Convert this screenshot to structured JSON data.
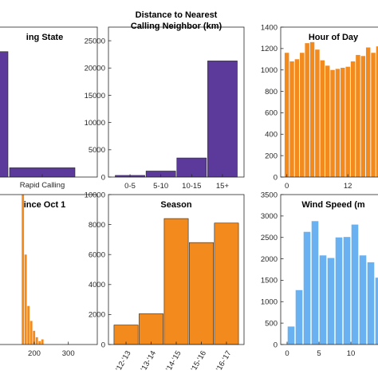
{
  "chart_data": [
    {
      "type": "bar",
      "title": "ing State",
      "categories": [
        "",
        "Rapid Calling"
      ],
      "x_tick_labels": [
        "Rapid Calling"
      ],
      "values": [
        23000,
        1700
      ],
      "ylim": [
        0,
        27500
      ],
      "color": "#5b3a9b"
    },
    {
      "type": "bar",
      "title": "Distance to Nearest\nCalling Neighbor (km)",
      "title_lines": [
        "Distance to Nearest",
        "Calling Neighbor (km)"
      ],
      "categories": [
        "0-5",
        "5-10",
        "10-15",
        "15+"
      ],
      "values": [
        300,
        1100,
        3500,
        21300
      ],
      "y_ticks": [
        "0",
        "5000",
        "10000",
        "15000",
        "20000",
        "25000"
      ],
      "ylim": [
        0,
        27500
      ],
      "color": "#5b3a9b"
    },
    {
      "type": "bar",
      "title": "Hour of Day",
      "x_ticks": [
        "0",
        "12"
      ],
      "y_ticks": [
        "0",
        "200",
        "400",
        "600",
        "800",
        "1000",
        "1200",
        "1400"
      ],
      "values": [
        1160,
        1080,
        1100,
        1160,
        1250,
        1260,
        1190,
        1090,
        1040,
        1000,
        1010,
        1020,
        1030,
        1080,
        1140,
        1130,
        1210,
        1160,
        1220
      ],
      "ylim": [
        0,
        1400
      ],
      "xlim": [
        -1.2,
        19.5
      ],
      "color": "#f28a1e"
    },
    {
      "type": "bar",
      "title": "ince Oct 1",
      "x_ticks": [
        "200",
        "300"
      ],
      "values": [
        3500,
        2100,
        900,
        550,
        320,
        170,
        80,
        120
      ],
      "ylim": [
        0,
        3500
      ],
      "xlim": [
        76,
        385
      ],
      "bins_start": 162,
      "bin_width": 8.2,
      "color": "#f28a1e"
    },
    {
      "type": "bar",
      "title": "Season",
      "categories": [
        "'12-'13",
        "'13-'14",
        "'14-'15",
        "'15-'16",
        "'16-'17"
      ],
      "values": [
        1300,
        2050,
        8400,
        6800,
        8100
      ],
      "y_ticks": [
        "0",
        "2000",
        "4000",
        "6000",
        "8000",
        "10000"
      ],
      "ylim": [
        0,
        10000
      ],
      "color": "#f28a1e"
    },
    {
      "type": "bar",
      "title": "Wind Speed (m",
      "x_ticks": [
        "0",
        "5",
        "10"
      ],
      "y_ticks": [
        "0",
        "500",
        "1000",
        "1500",
        "2000",
        "2500",
        "3000",
        "3500"
      ],
      "values": [
        420,
        1270,
        2630,
        2880,
        2080,
        2020,
        2500,
        2510,
        2800,
        2080,
        1920,
        1560
      ],
      "ylim": [
        0,
        3500
      ],
      "xlim": [
        -1,
        15.5
      ],
      "color": "#6ab1f2"
    }
  ]
}
